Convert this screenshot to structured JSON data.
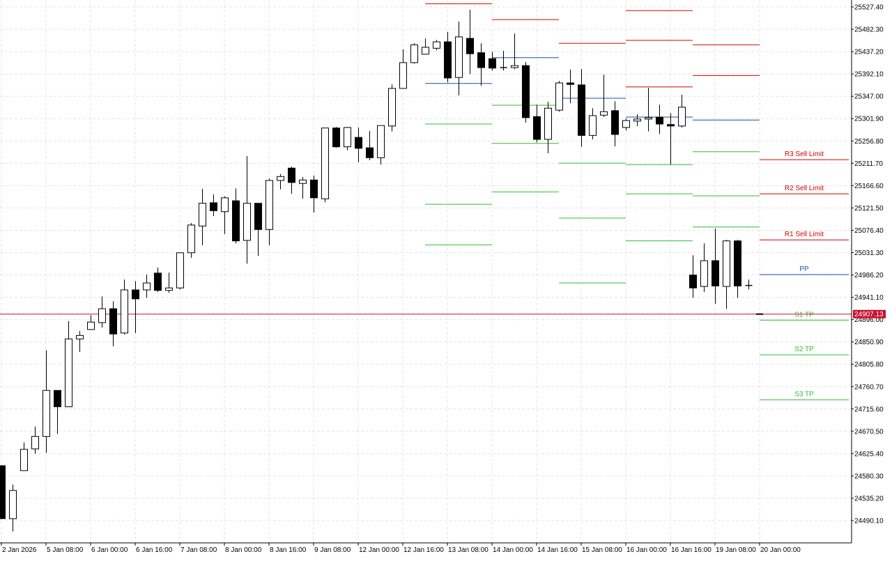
{
  "chart_data": {
    "type": "candlestick",
    "categories": [
      "2 Jan 2026",
      null,
      null,
      null,
      "5 Jan 08:00",
      null,
      null,
      null,
      "6 Jan 00:00",
      null,
      null,
      null,
      "6 Jan 16:00",
      null,
      null,
      null,
      "7 Jan 08:00",
      null,
      null,
      null,
      "8 Jan 00:00",
      null,
      null,
      null,
      "8 Jan 16:00",
      null,
      null,
      null,
      "9 Jan 08:00",
      null,
      null,
      null,
      "12 Jan 00:00",
      null,
      null,
      null,
      "12 Jan 16:00",
      null,
      null,
      null,
      "13 Jan 08:00",
      null,
      null,
      null,
      "14 Jan 00:00",
      null,
      null,
      null,
      "14 Jan 16:00",
      null,
      null,
      null,
      "15 Jan 08:00",
      null,
      null,
      null,
      "16 Jan 00:00",
      null,
      null,
      null,
      "16 Jan 16:00",
      null,
      null,
      null,
      "19 Jan 08:00",
      null,
      null,
      null,
      "20 Jan 00:00"
    ],
    "open": [
      24601,
      24494,
      24591,
      24635,
      24660,
      24753,
      24720,
      24857,
      24876,
      24890,
      24918,
      24869,
      24956,
      24956,
      24990,
      24955,
      24960,
      25031,
      25085,
      25132,
      25114,
      25136,
      25056,
      25131,
      25078,
      25177,
      25202,
      25171,
      25178,
      25140,
      25283,
      25245,
      25264,
      25243,
      25223,
      25287,
      25363,
      25415,
      25432,
      25444,
      25457,
      25385,
      25464,
      25435,
      25423,
      25404,
      25405,
      25409,
      25306,
      25260,
      25319,
      25374,
      25370,
      25268,
      25309,
      25318,
      25284,
      25297,
      25301,
      25305,
      25290,
      25287,
      24986,
      24963,
      25015,
      24963,
      25055,
      24966,
      null
    ],
    "high": [
      24601,
      24563,
      24648,
      24680,
      24834,
      24753,
      24893,
      24873,
      24905,
      24943,
      24933,
      24977,
      24974,
      24987,
      25001,
      24991,
      25031,
      25091,
      25160,
      25149,
      25145,
      25161,
      25226,
      25131,
      25181,
      25190,
      25205,
      25184,
      25187,
      25283,
      25285,
      25285,
      25284,
      25277,
      25288,
      25371,
      25442,
      25454,
      25464,
      25461,
      25477,
      25498,
      25522,
      25454,
      25437,
      25439,
      25474,
      25416,
      25330,
      25336,
      25378,
      25401,
      25402,
      25323,
      25391,
      25337,
      25302,
      25311,
      25364,
      25330,
      25313,
      25350,
      25026,
      25050,
      25080,
      25057,
      25057,
      24977,
      null
    ],
    "low": [
      24494,
      24468,
      24591,
      24625,
      24627,
      24665,
      24720,
      24831,
      24876,
      24880,
      24842,
      24866,
      24869,
      24940,
      24952,
      24950,
      24957,
      25021,
      25046,
      25105,
      25069,
      25050,
      25009,
      25025,
      25046,
      25159,
      25150,
      25140,
      25112,
      25133,
      25243,
      25238,
      25214,
      25218,
      25209,
      25276,
      25363,
      25413,
      25432,
      25440,
      25375,
      25349,
      25392,
      25368,
      25399,
      25399,
      25402,
      25294,
      25254,
      25232,
      25316,
      25333,
      25245,
      25260,
      25305,
      25246,
      25278,
      25287,
      25276,
      25271,
      25209,
      25284,
      24940,
      24952,
      24928,
      24918,
      24940,
      24957,
      null
    ],
    "close": [
      24494,
      24551,
      24634,
      24660,
      24753,
      24720,
      24857,
      24864,
      24891,
      24918,
      24867,
      24956,
      24938,
      24970,
      24955,
      24960,
      25031,
      25087,
      25131,
      25116,
      25142,
      25055,
      25131,
      25078,
      25177,
      25185,
      25173,
      25178,
      25142,
      25283,
      25245,
      25284,
      25242,
      25223,
      25288,
      25363,
      25415,
      25451,
      25446,
      25457,
      25384,
      25467,
      25433,
      25405,
      25404,
      25406,
      25409,
      25304,
      25260,
      25323,
      25374,
      25371,
      25268,
      25308,
      25316,
      25270,
      25298,
      25301,
      25304,
      25291,
      25287,
      25325,
      24960,
      25015,
      24964,
      25055,
      24964,
      24964,
      null
    ],
    "up_color": "#ffffff",
    "down_color": "#000000",
    "outline_color": "#000000",
    "ylim": [
      24445.1,
      25541.5
    ],
    "yticks": [
      {
        "value": 25527.4,
        "label": "25527.40"
      },
      {
        "value": 25482.3,
        "label": "25482.30"
      },
      {
        "value": 25437.2,
        "label": "25437.20"
      },
      {
        "value": 25392.1,
        "label": "25392.10"
      },
      {
        "value": 25347,
        "label": "25347.00"
      },
      {
        "value": 25301.9,
        "label": "25301.90"
      },
      {
        "value": 25256.8,
        "label": "25256.80"
      },
      {
        "value": 25211.7,
        "label": "25211.70"
      },
      {
        "value": 25166.6,
        "label": "25166.60"
      },
      {
        "value": 25121.5,
        "label": "25121.50"
      },
      {
        "value": 25076.4,
        "label": "25076.40"
      },
      {
        "value": 25031.3,
        "label": "25031.30"
      },
      {
        "value": 24986.2,
        "label": "24986.20"
      },
      {
        "value": 24941.1,
        "label": "24941.10"
      },
      {
        "value": 24896,
        "label": "24896.00"
      },
      {
        "value": 24850.9,
        "label": "24850.90"
      },
      {
        "value": 24805.8,
        "label": "24805.80"
      },
      {
        "value": 24760.7,
        "label": "24760.70"
      },
      {
        "value": 24715.6,
        "label": "24715.60"
      },
      {
        "value": 24670.5,
        "label": "24670.50"
      },
      {
        "value": 24625.4,
        "label": "24625.40"
      },
      {
        "value": 24580.3,
        "label": "24580.30"
      },
      {
        "value": 24535.2,
        "label": "24535.20"
      },
      {
        "value": 24490.1,
        "label": "24490.10"
      }
    ],
    "grid": true,
    "current_price": {
      "value": 24907.13,
      "label": "24907.13",
      "color": "#c8102e"
    },
    "pivot_colors": {
      "resistance": "#d40000",
      "pp": "#1f4f9f",
      "support": "#33bb33"
    },
    "pivots": [
      {
        "start": 38,
        "end": 44,
        "resistance": [
          25534
        ],
        "pp": 25373,
        "support": [
          25291,
          25129,
          25047
        ]
      },
      {
        "start": 44,
        "end": 50,
        "resistance": [
          25502
        ],
        "pp": 25425,
        "support": [
          25329,
          25252,
          25154
        ]
      },
      {
        "start": 50,
        "end": 56,
        "resistance": [
          25454
        ],
        "pp": 25343,
        "support": [
          25212,
          25101,
          24970
        ]
      },
      {
        "start": 56,
        "end": 62,
        "resistance": [
          25366,
          25460,
          25520
        ],
        "pp": 25305,
        "support": [
          25209,
          25150,
          25055
        ]
      },
      {
        "start": 62,
        "end": 68,
        "resistance": [
          25389,
          25451
        ],
        "pp": 25299,
        "support": [
          25235,
          25146,
          25083
        ]
      },
      {
        "start": 68,
        "end": 76,
        "resistance": [
          25057,
          25150,
          25219
        ],
        "pp": 24987,
        "support": [
          24895,
          24825,
          24734
        ],
        "resistance_labels": [
          "R1 Sell Limit",
          "R2 Sell Limit",
          "R3 Sell Limit"
        ],
        "pp_label": "PP",
        "support_labels": [
          "S1 TP",
          "S2 TP",
          "S3 TP"
        ]
      }
    ]
  }
}
